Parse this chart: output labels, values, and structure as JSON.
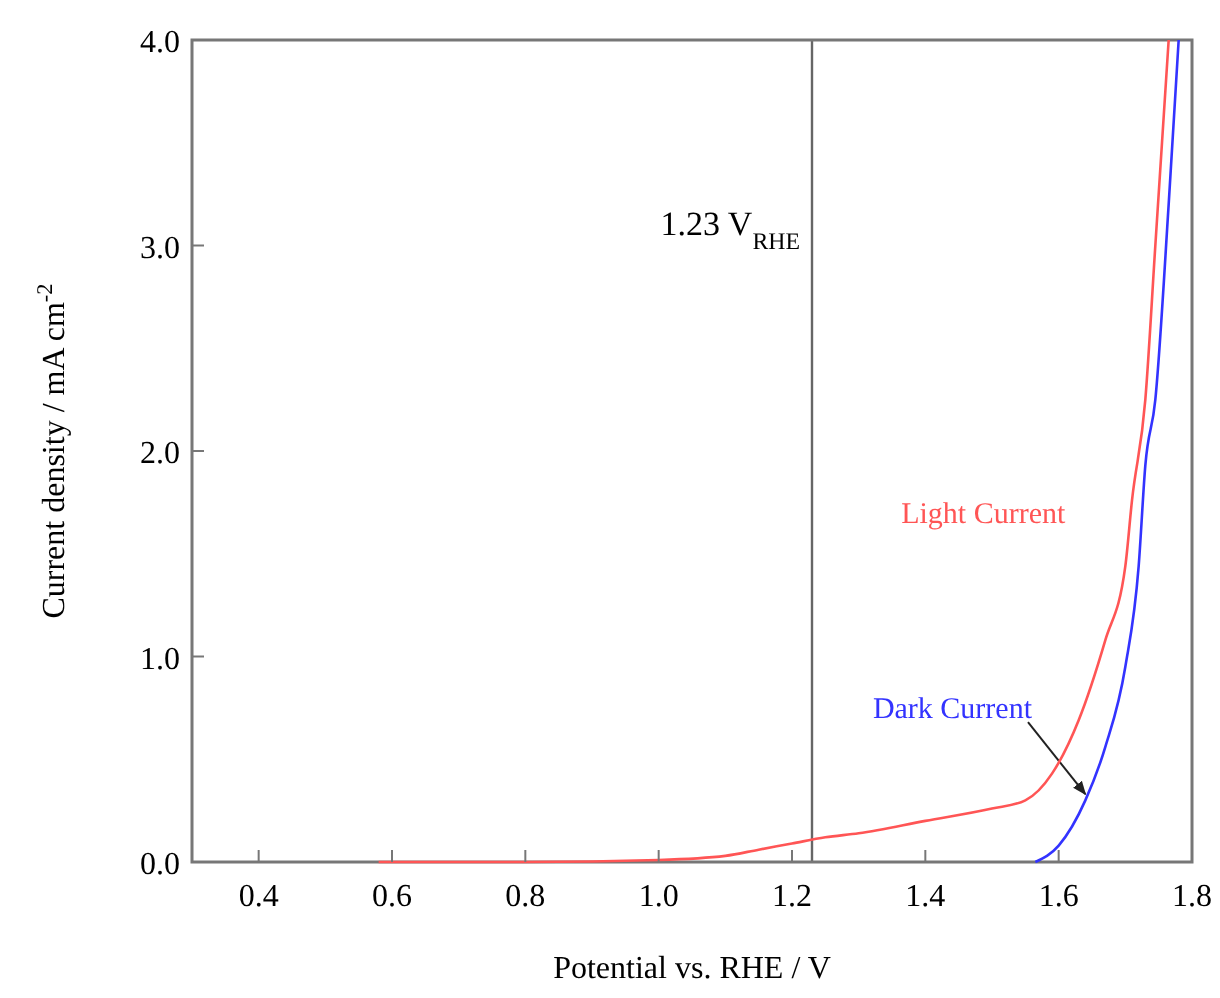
{
  "chart_data": {
    "type": "line",
    "xlabel": "Potential vs. RHE / V",
    "ylabel": "Current density / mA cm$^{-2}$",
    "xlim": [
      0.3,
      1.8
    ],
    "xticks": [
      0.4,
      0.6,
      0.8,
      {
        "value": 1,
        "label": "1.0"
      },
      1.2,
      1.4,
      1.6,
      1.8
    ],
    "ylim": [
      0,
      4.0
    ],
    "yticks": [
      {
        "value": 0,
        "label": "0.0"
      },
      {
        "value": 1,
        "label": "1.0"
      },
      {
        "value": 2,
        "label": "2.0"
      },
      {
        "value": 3,
        "label": "3.0"
      },
      {
        "value": 4,
        "label": "4.0"
      }
    ],
    "grid": false,
    "line_style": "solid",
    "series": [
      {
        "name": "Light Current",
        "color": "#ff5555",
        "x": [
          0.58,
          0.8,
          1.0,
          1.1,
          1.15,
          1.2,
          1.25,
          1.3,
          1.4,
          1.5,
          1.55,
          1.59,
          1.63,
          1.67,
          1.7,
          1.71,
          1.73,
          1.745,
          1.765
        ],
        "values": [
          0,
          0,
          0.01,
          0.03,
          0.06,
          0.09,
          0.12,
          0.14,
          0.2,
          0.26,
          0.3,
          0.43,
          0.69,
          1.08,
          1.44,
          1.76,
          2.25,
          3.0,
          4.0
        ]
      },
      {
        "name": "Dark Current",
        "color": "#3333ff",
        "x": [
          1.565,
          1.6,
          1.64,
          1.67,
          1.7,
          1.72,
          1.73,
          1.745,
          1.765,
          1.78
        ],
        "values": [
          0,
          0.08,
          0.3,
          0.56,
          0.95,
          1.44,
          1.93,
          2.25,
          3.2,
          4.0
        ]
      }
    ],
    "ref_lines": [
      {
        "axis": "x",
        "value": 1.23,
        "label": "1.23 V$_{RHE}$",
        "color": "#666666"
      }
    ]
  }
}
